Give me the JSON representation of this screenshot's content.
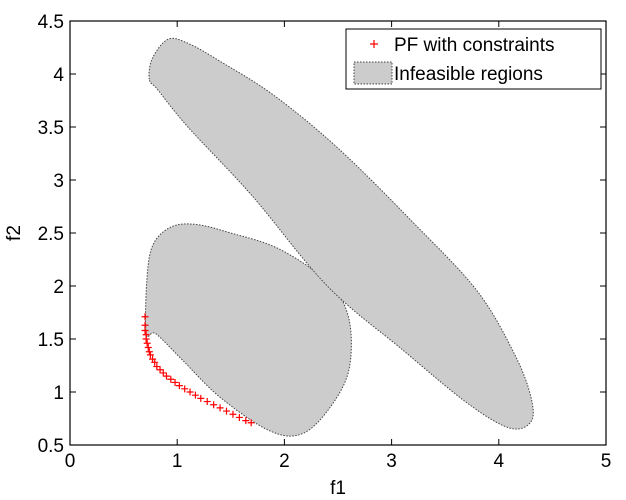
{
  "chart_data": {
    "type": "scatter",
    "title": "",
    "xlabel": "f1",
    "ylabel": "f2",
    "xlim": [
      0,
      5
    ],
    "ylim": [
      0.5,
      4.5
    ],
    "x_ticks": [
      0,
      1,
      2,
      3,
      4,
      5
    ],
    "x_tick_labels": [
      "0",
      "1",
      "2",
      "3",
      "4",
      "5"
    ],
    "y_ticks": [
      0.5,
      1,
      1.5,
      2,
      2.5,
      3,
      3.5,
      4,
      4.5
    ],
    "y_tick_labels": [
      "0.5",
      "1",
      "1.5",
      "2",
      "2.5",
      "3",
      "3.5",
      "4",
      "4.5"
    ],
    "grid": false,
    "legend_position": "top-right",
    "series": [
      {
        "name": "PF with constraints",
        "kind": "marker",
        "marker": "+",
        "color": "#ff0000",
        "x": [
          0.7,
          0.7,
          0.7,
          0.71,
          0.71,
          0.72,
          0.73,
          0.74,
          0.75,
          0.77,
          0.79,
          0.81,
          0.84,
          0.87,
          0.9,
          0.94,
          0.98,
          1.02,
          1.07,
          1.12,
          1.17,
          1.22,
          1.28,
          1.34,
          1.4,
          1.46,
          1.52,
          1.58,
          1.64,
          1.69
        ],
        "y": [
          1.71,
          1.63,
          1.58,
          1.54,
          1.5,
          1.46,
          1.42,
          1.38,
          1.35,
          1.31,
          1.28,
          1.24,
          1.21,
          1.18,
          1.15,
          1.12,
          1.09,
          1.06,
          1.03,
          1.0,
          0.97,
          0.94,
          0.91,
          0.88,
          0.85,
          0.82,
          0.79,
          0.76,
          0.73,
          0.71
        ]
      },
      {
        "name": "Infeasible regions",
        "kind": "region",
        "fill": "#cccccc",
        "stroke": "#444444",
        "regions": [
          {
            "x": [
              0.71,
              0.72,
              0.78,
              0.95,
              1.18,
              1.5,
              1.95,
              2.4,
              2.6,
              2.6,
              2.4,
              2.15,
              1.85,
              1.4,
              1.05,
              0.8,
              0.71
            ],
            "y": [
              1.55,
              2.1,
              2.4,
              2.56,
              2.58,
              2.5,
              2.35,
              2.04,
              1.7,
              1.2,
              0.82,
              0.6,
              0.64,
              0.95,
              1.3,
              1.55,
              1.55
            ]
          },
          {
            "x": [
              0.74,
              0.77,
              0.92,
              1.12,
              1.4,
              1.9,
              2.5,
              3.2,
              3.8,
              4.15,
              4.3,
              4.3,
              4.1,
              3.7,
              3.1,
              2.4,
              1.7,
              1.1,
              0.82,
              0.74
            ],
            "y": [
              3.95,
              4.15,
              4.33,
              4.28,
              4.12,
              3.8,
              3.3,
              2.6,
              1.95,
              1.35,
              0.95,
              0.72,
              0.66,
              0.9,
              1.4,
              2.0,
              2.85,
              3.5,
              3.85,
              3.95
            ]
          }
        ]
      }
    ]
  }
}
